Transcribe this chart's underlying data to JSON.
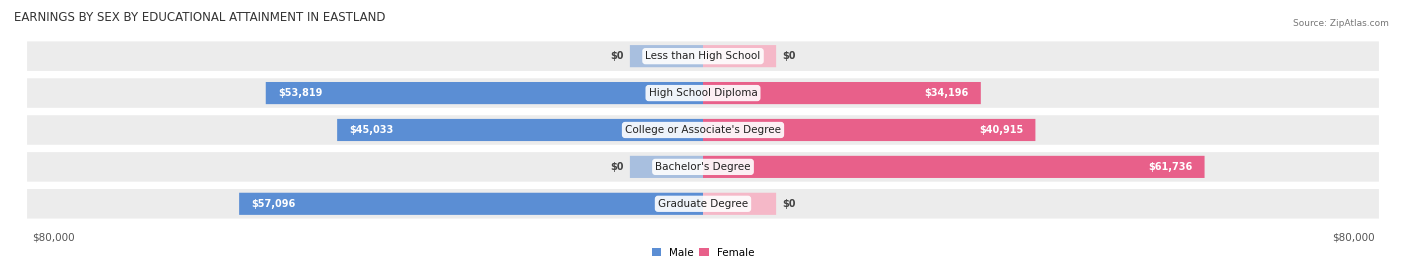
{
  "title": "EARNINGS BY SEX BY EDUCATIONAL ATTAINMENT IN EASTLAND",
  "source": "Source: ZipAtlas.com",
  "categories": [
    "Less than High School",
    "High School Diploma",
    "College or Associate's Degree",
    "Bachelor's Degree",
    "Graduate Degree"
  ],
  "male_values": [
    0,
    53819,
    45033,
    0,
    57096
  ],
  "female_values": [
    0,
    34196,
    40915,
    61736,
    0
  ],
  "male_color_light": "#a8bfdf",
  "male_color_dark": "#5b8ed4",
  "female_color_light": "#f5b8c8",
  "female_color_dark": "#e8608a",
  "max_value": 80000,
  "legend_male": "Male",
  "legend_female": "Female",
  "background_row_color": "#ececec",
  "title_fontsize": 8.5,
  "label_fontsize": 7.5,
  "value_fontsize": 7.0,
  "tick_fontsize": 7.5,
  "source_fontsize": 6.5
}
